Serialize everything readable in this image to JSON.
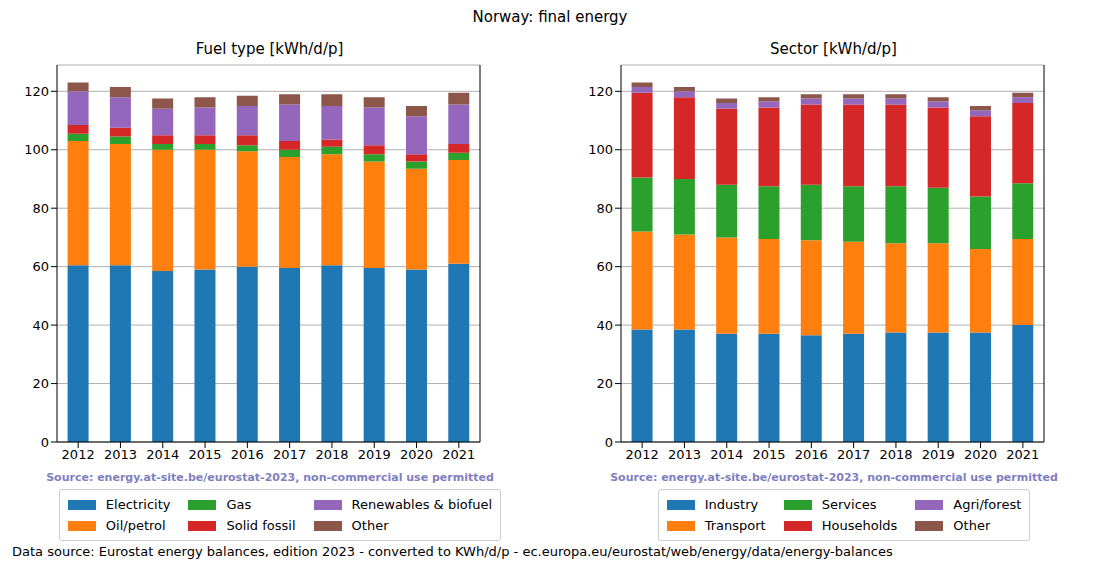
{
  "title": "Norway: final energy",
  "footer": "Data source: Eurostat energy balances, edition 2023 - converted to KWh/d/p - ec.europa.eu/eurostat/web/energy/data/energy-balances",
  "chart_data": [
    {
      "type": "bar",
      "title": "Fuel type [kWh/d/p]",
      "annotation": "Source: energy.at-site.be/eurostat-2023, non-commercial use permitted",
      "stacked": true,
      "grid": true,
      "legend": "bottom",
      "categories": [
        "2012",
        "2013",
        "2014",
        "2015",
        "2016",
        "2017",
        "2018",
        "2019",
        "2020",
        "2021"
      ],
      "ylim": [
        0,
        129
      ],
      "yticks": [
        0,
        20,
        40,
        60,
        80,
        100,
        120
      ],
      "series": [
        {
          "name": "Electricity",
          "color": "#1f77b4",
          "values": [
            60.5,
            60.5,
            58.5,
            59,
            60,
            59.5,
            60.5,
            59.5,
            59,
            61
          ]
        },
        {
          "name": "Oil/petrol",
          "color": "#ff7f0e",
          "values": [
            42.5,
            41.5,
            41.5,
            41,
            39.5,
            38,
            38,
            36.5,
            34.5,
            35.5
          ]
        },
        {
          "name": "Gas",
          "color": "#2ca02c",
          "values": [
            2.5,
            2.5,
            2,
            2,
            2,
            2.5,
            2.5,
            2.5,
            2.5,
            2.5
          ]
        },
        {
          "name": "Solid fossil",
          "color": "#d62728",
          "values": [
            3,
            3,
            3,
            3,
            3.5,
            3,
            2.5,
            3,
            2.5,
            3
          ]
        },
        {
          "name": "Renewables & biofuel",
          "color": "#9467bd",
          "values": [
            11.5,
            10.5,
            9,
            9.5,
            10,
            12.5,
            11.5,
            13,
            13,
            13.5
          ]
        },
        {
          "name": "Other",
          "color": "#8c564b",
          "values": [
            3,
            3.5,
            3.5,
            3.5,
            3.5,
            3.5,
            4,
            3.5,
            3.5,
            4
          ]
        }
      ]
    },
    {
      "type": "bar",
      "title": "Sector [kWh/d/p]",
      "annotation": "Source: energy.at-site.be/eurostat-2023, non-commercial use permitted",
      "stacked": true,
      "grid": true,
      "legend": "bottom",
      "categories": [
        "2012",
        "2013",
        "2014",
        "2015",
        "2016",
        "2017",
        "2018",
        "2019",
        "2020",
        "2021"
      ],
      "ylim": [
        0,
        129
      ],
      "yticks": [
        0,
        20,
        40,
        60,
        80,
        100,
        120
      ],
      "series": [
        {
          "name": "Industry",
          "color": "#1f77b4",
          "values": [
            38.5,
            38.5,
            37,
            37,
            36.5,
            37,
            37.5,
            37.5,
            37.5,
            40
          ]
        },
        {
          "name": "Transport",
          "color": "#ff7f0e",
          "values": [
            33.5,
            32.5,
            33,
            32.5,
            32.5,
            31.5,
            30.5,
            30.5,
            28.5,
            29.5
          ]
        },
        {
          "name": "Services",
          "color": "#2ca02c",
          "values": [
            18.5,
            19,
            18,
            18,
            19,
            19,
            19.5,
            19,
            18,
            19
          ]
        },
        {
          "name": "Households",
          "color": "#d62728",
          "values": [
            29,
            28,
            26,
            27,
            27.5,
            28,
            28,
            27.5,
            27.5,
            27.5
          ]
        },
        {
          "name": "Agri/forest",
          "color": "#9467bd",
          "values": [
            2,
            2,
            2,
            2,
            2,
            2,
            2,
            2,
            2,
            2
          ]
        },
        {
          "name": "Other",
          "color": "#8c564b",
          "values": [
            1.5,
            1.5,
            1.5,
            1.5,
            1.5,
            1.5,
            1.5,
            1.5,
            1.5,
            1.5
          ]
        }
      ]
    }
  ]
}
